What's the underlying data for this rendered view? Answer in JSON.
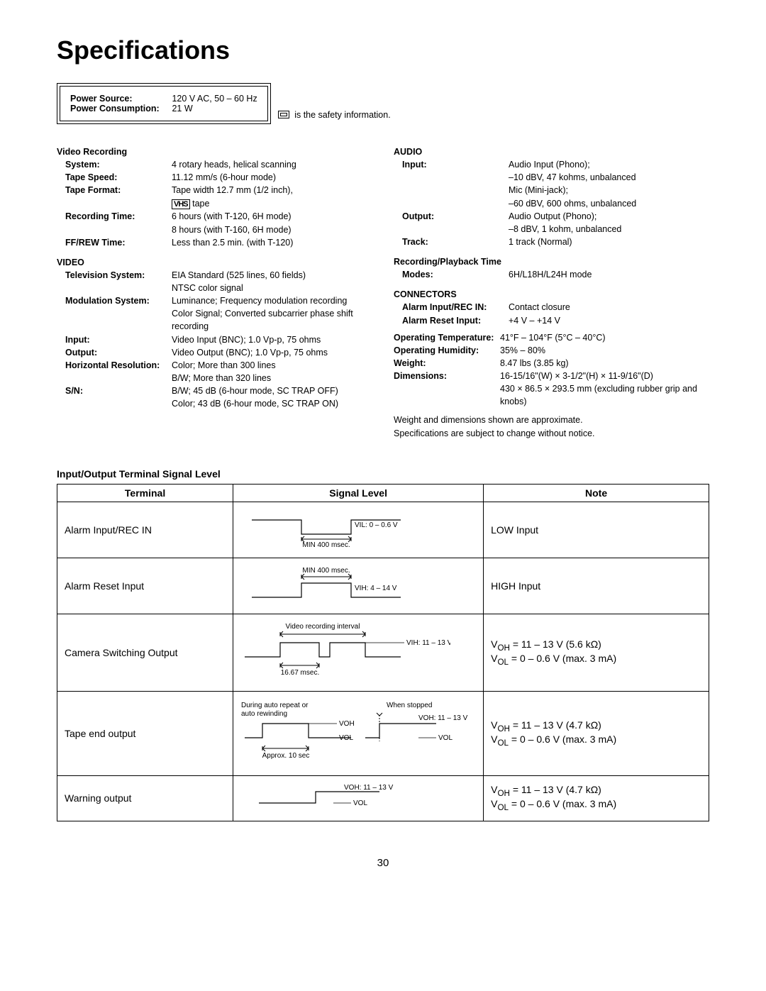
{
  "title": "Specifications",
  "power": {
    "source_label": "Power Source:",
    "source_value": "120 V AC, 50 – 60 Hz",
    "consumption_label": "Power Consumption:",
    "consumption_value": "21 W"
  },
  "safety_text": "is the safety information.",
  "left_specs": {
    "video_recording": {
      "heading": "Video Recording",
      "rows": [
        {
          "label": "System:",
          "value": "4 rotary heads, helical scanning"
        },
        {
          "label": "Tape Speed:",
          "value": "11.12 mm/s (6-hour mode)"
        },
        {
          "label": "Tape Format:",
          "value_pre": "Tape width 12.7 mm (1/2 inch),",
          "value_post": " tape",
          "vhs": "VHS"
        },
        {
          "label": "Recording Time:",
          "value": "6 hours (with T-120, 6H mode)\n8 hours (with T-160, 6H mode)"
        },
        {
          "label": "FF/REW Time:",
          "value": "Less than 2.5 min. (with T-120)"
        }
      ]
    },
    "video": {
      "heading": "VIDEO",
      "rows": [
        {
          "label": "Television System:",
          "value": "EIA Standard (525 lines, 60 fields)\nNTSC color signal"
        },
        {
          "label": "Modulation System:",
          "value": "Luminance; Frequency modulation recording\nColor Signal; Converted subcarrier phase shift recording"
        },
        {
          "label": "Input:",
          "value": "Video Input (BNC); 1.0 Vp-p, 75 ohms"
        },
        {
          "label": "Output:",
          "value": "Video Output (BNC); 1.0 Vp-p, 75 ohms"
        },
        {
          "label": "Horizontal Resolution:",
          "value": "Color; More than 300 lines\nB/W; More than 320 lines"
        },
        {
          "label": "S/N:",
          "value": "B/W; 45 dB (6-hour mode, SC TRAP OFF)\nColor; 43 dB (6-hour mode, SC TRAP ON)"
        }
      ]
    }
  },
  "right_specs": {
    "audio": {
      "heading": "AUDIO",
      "rows": [
        {
          "label": "Input:",
          "value": "Audio Input (Phono);\n–10 dBV, 47 kohms, unbalanced\nMic (Mini-jack);\n–60 dBV, 600 ohms, unbalanced"
        },
        {
          "label": "Output:",
          "value": "Audio Output (Phono);\n–8 dBV, 1 kohm, unbalanced"
        },
        {
          "label": "Track:",
          "value": "1 track (Normal)"
        }
      ]
    },
    "rpt": {
      "heading": "Recording/Playback Time",
      "rows": [
        {
          "label": "Modes:",
          "value": "6H/L18H/L24H mode"
        }
      ]
    },
    "connectors": {
      "heading": "CONNECTORS",
      "rows": [
        {
          "label": "Alarm Input/REC IN:",
          "value": "Contact closure"
        },
        {
          "label": "Alarm Reset Input:",
          "value": "+4 V – +14 V"
        }
      ]
    },
    "env": {
      "rows": [
        {
          "label": "Operating Temperature:",
          "value": "41°F – 104°F (5°C – 40°C)"
        },
        {
          "label": "Operating Humidity:",
          "value": "35% – 80%"
        },
        {
          "label": "Weight:",
          "value": "8.47 lbs (3.85 kg)"
        },
        {
          "label": "Dimensions:",
          "value": "16-15/16\"(W) × 3-1/2\"(H) × 11-9/16\"(D)\n430 × 86.5 × 293.5 mm (excluding rubber grip and knobs)"
        }
      ]
    },
    "footnote1": "Weight and dimensions shown are approximate.",
    "footnote2": "Specifications are subject to change without notice."
  },
  "io": {
    "heading": "Input/Output Terminal Signal Level",
    "columns": [
      "Terminal",
      "Signal Level",
      "Note"
    ],
    "rows": [
      {
        "terminal": "Alarm Input/REC IN",
        "note": "LOW Input",
        "diagram": {
          "type": "low_pulse",
          "vil": "VIL: 0 – 0.6 V",
          "min": "MIN 400 msec."
        }
      },
      {
        "terminal": "Alarm Reset Input",
        "note": "HIGH Input",
        "diagram": {
          "type": "high_pulse",
          "vih": "VIH: 4 – 14 V",
          "min": "MIN 400 msec."
        }
      },
      {
        "terminal": "Camera Switching Output",
        "note_html": "V<sub>OH</sub> = 11 – 13 V (5.6 kΩ)<br>V<sub>OL</sub> = 0 – 0.6 V (max. 3 mA)",
        "diagram": {
          "type": "camera",
          "top": "Video recording interval",
          "vih": "VIH: 11 – 13 V",
          "bottom": "16.67 msec."
        }
      },
      {
        "terminal": "Tape end output",
        "note_html": "V<sub>OH</sub> = 11 – 13 V (4.7 kΩ)<br>V<sub>OL</sub> = 0 – 0.6 V (max. 3 mA)",
        "diagram": {
          "type": "tape_end",
          "left_label": "During auto repeat or\nauto rewinding",
          "right_label": "When stopped",
          "voh": "VOH",
          "vol": "VOL",
          "voh_r": "VOH: 11 – 13 V",
          "vol_r": "VOL",
          "approx": "Approx. 10 sec"
        }
      },
      {
        "terminal": "Warning output",
        "note_html": "V<sub>OH</sub> = 11 – 13 V (4.7 kΩ)<br>V<sub>OL</sub> = 0 – 0.6 V (max. 3 mA)",
        "diagram": {
          "type": "warning",
          "voh": "VOH: 11 – 13 V",
          "vol": "VOL"
        }
      }
    ]
  },
  "page_number": "30"
}
